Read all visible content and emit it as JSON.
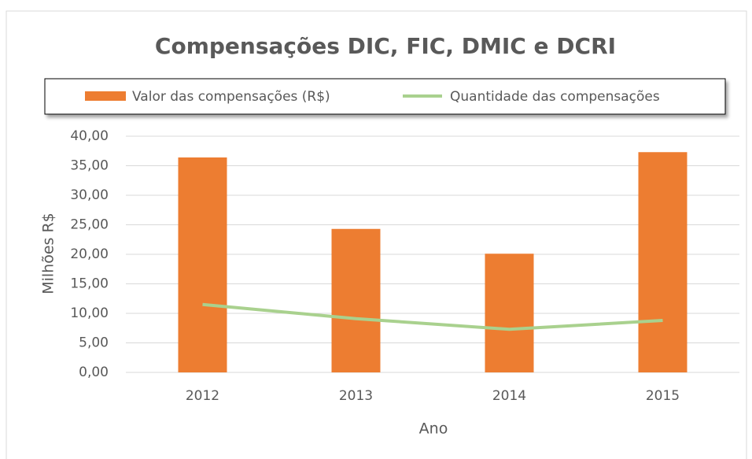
{
  "chart_data": {
    "type": "combo",
    "title": "Compensações DIC, FIC, DMIC e DCRI",
    "x_label": "Ano",
    "y_label": "Milhões R$",
    "categories": [
      "2012",
      "2013",
      "2014",
      "2015"
    ],
    "series": [
      {
        "name": "Valor das compensações (R$)",
        "type": "bar",
        "color": "#ed7d31",
        "values": [
          36.4,
          24.3,
          20.1,
          37.3
        ]
      },
      {
        "name": "Quantidade das compensações",
        "type": "line",
        "color": "#a9d18e",
        "values": [
          11.5,
          9.1,
          7.3,
          8.8
        ]
      }
    ],
    "ylim": [
      0,
      40
    ],
    "yticks": [
      {
        "value": 0,
        "label": "0,00"
      },
      {
        "value": 5,
        "label": "5,00"
      },
      {
        "value": 10,
        "label": "10,00"
      },
      {
        "value": 15,
        "label": "15,00"
      },
      {
        "value": 20,
        "label": "20,00"
      },
      {
        "value": 25,
        "label": "25,00"
      },
      {
        "value": 30,
        "label": "30,00"
      },
      {
        "value": 35,
        "label": "35,00"
      },
      {
        "value": 40,
        "label": "40,00"
      }
    ],
    "grid": true,
    "legend": "top"
  }
}
